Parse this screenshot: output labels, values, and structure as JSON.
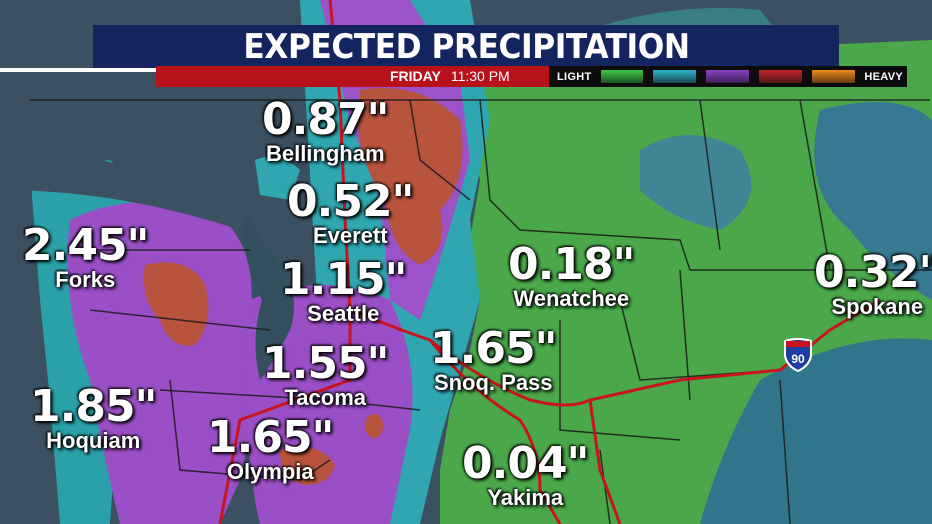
{
  "title": "EXPECTED PRECIPITATION",
  "valid_day": "FRIDAY",
  "valid_time": "11:30 PM",
  "legend": {
    "light_label": "LIGHT",
    "heavy_label": "HEAVY",
    "swatches": [
      "#3fc84a",
      "#2ab4c8",
      "#8a43c9",
      "#c4262e",
      "#f08a1c"
    ]
  },
  "colors": {
    "title_bg": "#14245e",
    "bar_red": "#b7111c",
    "ocean": "#3b5060",
    "green": "#4aa84a",
    "teal": "#2fa6b0",
    "purple": "#9a4fc6",
    "brown": "#b8533d",
    "blue": "#2f6f95"
  },
  "interstate_label": "90",
  "cities": [
    {
      "name": "Bellingham",
      "amount": "0.87\""
    },
    {
      "name": "Everett",
      "amount": "0.52\""
    },
    {
      "name": "Forks",
      "amount": "2.45\""
    },
    {
      "name": "Seattle",
      "amount": "1.15\""
    },
    {
      "name": "Wenatchee",
      "amount": "0.18\""
    },
    {
      "name": "Spokane",
      "amount": "0.32\""
    },
    {
      "name": "Snoq. Pass",
      "amount": "1.65\""
    },
    {
      "name": "Tacoma",
      "amount": "1.55\""
    },
    {
      "name": "Hoquiam",
      "amount": "1.85\""
    },
    {
      "name": "Olympia",
      "amount": "1.65\""
    },
    {
      "name": "Yakima",
      "amount": "0.04\""
    }
  ]
}
